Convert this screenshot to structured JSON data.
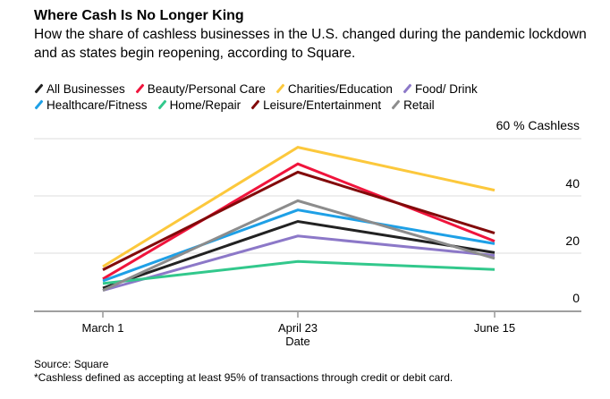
{
  "header": {
    "title": "Where Cash Is No Longer King",
    "subtitle": "How the share of cashless businesses in the U.S. changed during the pandemic lockdown and as states begin reopening, according to Square."
  },
  "chart_data": {
    "type": "line",
    "title": "Where Cash Is No Longer King",
    "xlabel": "Date",
    "ylabel": "% Cashless",
    "x": [
      "March 1",
      "April 23",
      "June 15"
    ],
    "ylim": [
      0,
      60
    ],
    "yticks": [
      0,
      20,
      40,
      60
    ],
    "ytick_labels": [
      "0",
      "20",
      "40",
      "60 % Cashless"
    ],
    "grid": true,
    "legend_position": "top",
    "series": [
      {
        "name": "All Businesses",
        "color": "#222222",
        "values": [
          7.8,
          31.1,
          20.2
        ]
      },
      {
        "name": "Beauty/Personal Care",
        "color": "#f0143c",
        "values": [
          11,
          51.2,
          24.2
        ]
      },
      {
        "name": "Charities/Education",
        "color": "#fcc83c",
        "values": [
          15.3,
          57,
          42
        ]
      },
      {
        "name": "Food/ Drink",
        "color": "#8c78c8",
        "values": [
          7,
          26,
          19.2
        ]
      },
      {
        "name": "Healthcare/Fitness",
        "color": "#1ea0e6",
        "values": [
          10.3,
          35.1,
          23.3
        ]
      },
      {
        "name": "Home/Repair",
        "color": "#32c88c",
        "values": [
          9.4,
          17.1,
          14.3
        ]
      },
      {
        "name": "Leisure/Entertainment",
        "color": "#820a0a",
        "values": [
          14.2,
          48.3,
          27
        ]
      },
      {
        "name": "Retail",
        "color": "#8c8c8c",
        "values": [
          7,
          38.3,
          18.2
        ]
      }
    ]
  },
  "footer": {
    "source": "Source: Square",
    "note": "*Cashless defined as accepting at least 95% of transactions through credit or debit card."
  }
}
